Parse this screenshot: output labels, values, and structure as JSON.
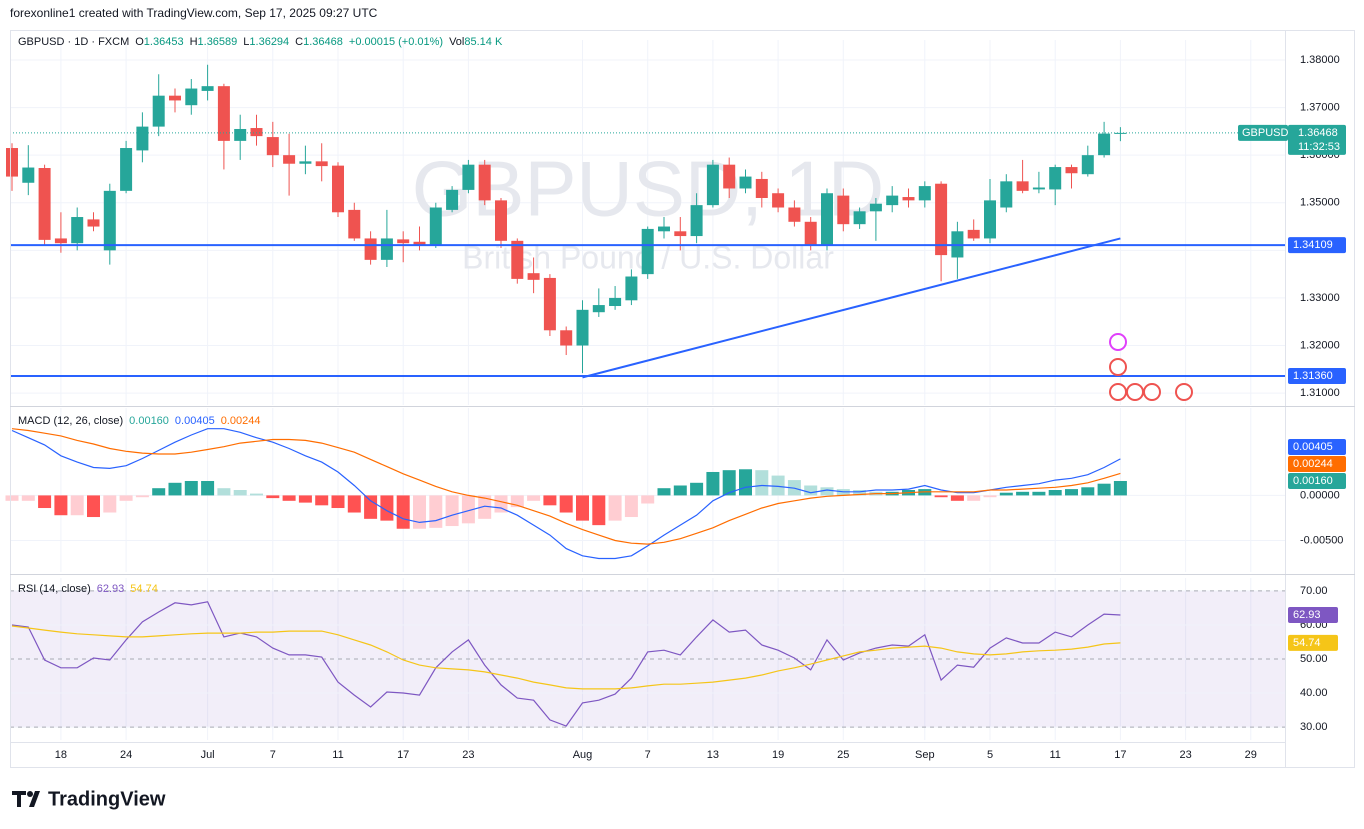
{
  "header": {
    "credit": "forexonline1 created with TradingView.com, Sep 17, 2025 09:27 UTC"
  },
  "footer": {
    "brand": "TradingView"
  },
  "chart_data": [
    {
      "type": "candlestick",
      "legend": {
        "symbol": "GBPUSD · 1D · FXCM",
        "open_label": "O",
        "high_label": "H",
        "low_label": "L",
        "close_label": "C",
        "change": "+0.00015 (+0.01%)",
        "volume_label": "Vol",
        "volume": "85.14 K"
      },
      "watermark": "GBPUSD, 1D",
      "watermark_subtitle": "British Pound / U.S. Dollar",
      "symbol_badge": "GBPUSD",
      "countdown": "11:32:53",
      "categories": [
        null,
        null,
        null,
        "18",
        null,
        null,
        null,
        "24",
        null,
        null,
        null,
        null,
        "Jul",
        null,
        null,
        null,
        "7",
        null,
        null,
        null,
        "11",
        null,
        null,
        null,
        "17",
        null,
        null,
        null,
        "23",
        null,
        null,
        null,
        null,
        null,
        null,
        "Aug",
        null,
        null,
        null,
        "7",
        null,
        null,
        null,
        "13",
        null,
        null,
        null,
        "19",
        null,
        null,
        null,
        "25",
        null,
        null,
        null,
        null,
        "Sep",
        null,
        null,
        null,
        "5",
        null,
        null,
        null,
        "11",
        null,
        null,
        null,
        "17",
        null,
        null,
        null,
        "23",
        null,
        null,
        null,
        "29",
        null
      ],
      "open": [
        1.3615,
        1.3542,
        1.3573,
        1.3425,
        1.3415,
        1.3465,
        1.34,
        1.3525,
        1.361,
        1.366,
        1.3725,
        1.3705,
        1.3735,
        1.3745,
        1.363,
        1.3657,
        1.3638,
        1.36,
        1.3582,
        1.3587,
        1.3578,
        1.3485,
        1.3425,
        1.338,
        1.3423,
        1.3418,
        1.3412,
        1.3485,
        1.3527,
        1.358,
        1.3505,
        1.342,
        1.3352,
        1.3342,
        1.3232,
        1.32,
        1.327,
        1.3283,
        1.3295,
        1.335,
        1.344,
        1.344,
        1.343,
        1.3495,
        1.358,
        1.353,
        1.355,
        1.352,
        1.349,
        1.346,
        1.3412,
        1.3515,
        1.3455,
        1.3482,
        1.3495,
        1.3512,
        1.3505,
        1.354,
        1.3385,
        1.3443,
        1.3425,
        1.349,
        1.3545,
        1.3528,
        1.3528,
        1.3575,
        1.356,
        1.36,
        1.36453,
        null,
        null,
        null,
        null,
        null,
        null,
        null,
        null,
        null
      ],
      "high": [
        1.3625,
        1.3621,
        1.358,
        1.348,
        1.349,
        1.348,
        1.354,
        1.363,
        1.369,
        1.377,
        1.374,
        1.376,
        1.379,
        1.375,
        1.3685,
        1.3685,
        1.367,
        1.3645,
        1.362,
        1.3625,
        1.3585,
        1.35,
        1.344,
        1.3485,
        1.344,
        1.345,
        1.35,
        1.3535,
        1.359,
        1.359,
        1.351,
        1.3425,
        1.3385,
        1.335,
        1.324,
        1.3295,
        1.332,
        1.3325,
        1.336,
        1.345,
        1.347,
        1.347,
        1.352,
        1.359,
        1.3595,
        1.357,
        1.3565,
        1.353,
        1.3505,
        1.347,
        1.353,
        1.353,
        1.349,
        1.351,
        1.3535,
        1.353,
        1.3545,
        1.3545,
        1.346,
        1.3465,
        1.355,
        1.356,
        1.359,
        1.3565,
        1.358,
        1.358,
        1.362,
        1.367,
        1.36589,
        null,
        null,
        null,
        null,
        null,
        null,
        null,
        null,
        null
      ],
      "low": [
        1.3525,
        1.3516,
        1.341,
        1.3395,
        1.34,
        1.344,
        1.337,
        1.352,
        1.3585,
        1.364,
        1.369,
        1.3685,
        1.3715,
        1.357,
        1.359,
        1.362,
        1.3575,
        1.3515,
        1.356,
        1.3545,
        1.347,
        1.342,
        1.337,
        1.3365,
        1.3375,
        1.34,
        1.3405,
        1.348,
        1.352,
        1.3495,
        1.3405,
        1.333,
        1.331,
        1.322,
        1.318,
        1.3142,
        1.326,
        1.3275,
        1.3285,
        1.334,
        1.3425,
        1.34,
        1.3415,
        1.349,
        1.351,
        1.352,
        1.349,
        1.348,
        1.345,
        1.34,
        1.34,
        1.344,
        1.3445,
        1.342,
        1.348,
        1.349,
        1.349,
        1.3335,
        1.334,
        1.342,
        1.3415,
        1.348,
        1.352,
        1.352,
        1.3495,
        1.353,
        1.3555,
        1.3595,
        1.36294,
        null,
        null,
        null,
        null,
        null,
        null,
        null,
        null,
        null
      ],
      "close": [
        1.3555,
        1.3574,
        1.3422,
        1.3415,
        1.347,
        1.345,
        1.3525,
        1.3615,
        1.366,
        1.3725,
        1.3715,
        1.374,
        1.3745,
        1.363,
        1.3655,
        1.364,
        1.36,
        1.3582,
        1.3587,
        1.3577,
        1.348,
        1.3425,
        1.338,
        1.3425,
        1.3415,
        1.3412,
        1.349,
        1.3527,
        1.358,
        1.3505,
        1.342,
        1.334,
        1.3338,
        1.3232,
        1.32,
        1.3275,
        1.3285,
        1.33,
        1.3345,
        1.3445,
        1.345,
        1.343,
        1.3495,
        1.358,
        1.353,
        1.3555,
        1.351,
        1.349,
        1.346,
        1.3412,
        1.352,
        1.3455,
        1.3482,
        1.3498,
        1.3515,
        1.3505,
        1.3535,
        1.339,
        1.344,
        1.3425,
        1.3505,
        1.3545,
        1.3525,
        1.3532,
        1.3575,
        1.3562,
        1.36,
        1.36453,
        1.36468,
        null,
        null,
        null,
        null,
        null,
        null,
        null,
        null,
        null
      ],
      "up_color": "#26a69a",
      "down_color": "#ef5350",
      "ylim": [
        1.3075,
        1.3842
      ],
      "yticks": [
        {
          "value": 1.31,
          "label": "1.31000"
        },
        {
          "value": 1.32,
          "label": "1.32000"
        },
        {
          "value": 1.33,
          "label": "1.33000"
        },
        {
          "value": 1.34,
          "label": "1.34000"
        },
        {
          "value": 1.35,
          "label": "1.35000"
        },
        {
          "value": 1.36,
          "label": "1.36000"
        },
        {
          "value": 1.37,
          "label": "1.37000"
        },
        {
          "value": 1.38,
          "label": "1.38000"
        }
      ],
      "grid": true,
      "hlines": [
        1.34109,
        {
          "value": 1.3136,
          "label": "1.31360"
        }
      ],
      "hline_color": "#2962ff",
      "trendline": {
        "x": [
          35,
          68
        ],
        "y": [
          1.3133,
          1.3425
        ]
      }
    },
    {
      "type": "macd",
      "title": "MACD (12, 26, close)",
      "ylim": [
        -0.0085,
        0.0097
      ],
      "yticks": [
        {
          "value": -0.005,
          "label": "-0.00500"
        },
        {
          "value": 0,
          "label": "0.00000"
        }
      ],
      "series": [
        {
          "style": "histogram",
          "color": "#26a69a",
          "colors": [
            "#26a69a",
            "#b2dfdb",
            "#ff5252",
            "#ffcdd2"
          ],
          "last_value_label": "0.00160",
          "values": [
            -0.0006,
            -0.0006,
            -0.0014,
            -0.0022,
            -0.0022,
            -0.0024,
            -0.0019,
            -0.0006,
            -0.0002,
            0.0008,
            0.0014,
            0.0016,
            0.0016,
            0.0008,
            0.0006,
            0.0002,
            -0.0003,
            -0.0006,
            -0.0008,
            -0.0011,
            -0.0014,
            -0.0019,
            -0.0026,
            -0.0028,
            -0.0037,
            -0.0037,
            -0.0036,
            -0.0034,
            -0.0031,
            -0.0026,
            -0.0019,
            -0.0013,
            -0.0006,
            -0.0011,
            -0.0019,
            -0.0028,
            -0.0033,
            -0.0028,
            -0.0024,
            -0.0009,
            0.0008,
            0.0011,
            0.0014,
            0.0026,
            0.0028,
            0.0029,
            0.0028,
            0.0022,
            0.0017,
            0.0011,
            0.0009,
            0.0007,
            0.0006,
            0.0004,
            0.0004,
            0.0006,
            0.0007,
            -0.0002,
            -0.0006,
            -0.0006,
            -0.0002,
            0.0003,
            0.0004,
            0.0004,
            0.0006,
            0.0007,
            0.0009,
            0.0013,
            0.0016
          ]
        },
        {
          "style": "line",
          "color": "#2962ff",
          "last_value_label": "0.00405",
          "values": [
            0.0072,
            0.0064,
            0.0056,
            0.0044,
            0.0037,
            0.0031,
            0.003,
            0.0033,
            0.0041,
            0.005,
            0.0059,
            0.0067,
            0.0074,
            0.0074,
            0.007,
            0.0064,
            0.0059,
            0.0052,
            0.0044,
            0.0037,
            0.0026,
            0.0011,
            -0.0006,
            -0.0017,
            -0.0026,
            -0.003,
            -0.0028,
            -0.0022,
            -0.0017,
            -0.0012,
            -0.0014,
            -0.0022,
            -0.0033,
            -0.0044,
            -0.0059,
            -0.0067,
            -0.007,
            -0.007,
            -0.0067,
            -0.0056,
            -0.0044,
            -0.0033,
            -0.0022,
            -0.0006,
            0.0003,
            0.0009,
            0.0011,
            0.001,
            0.0008,
            0.0003,
            0.0006,
            0.0004,
            0.0004,
            0.0006,
            0.0006,
            0.0007,
            0.0011,
            0.0006,
            0.0003,
            0.0003,
            0.0006,
            0.0009,
            0.0011,
            0.0013,
            0.0017,
            0.0019,
            0.0023,
            0.0031,
            0.00405
          ]
        },
        {
          "style": "line",
          "color": "#ff6d00",
          "last_value_label": "0.00244",
          "values": [
            0.0074,
            0.0072,
            0.0069,
            0.0066,
            0.0061,
            0.0057,
            0.0052,
            0.0049,
            0.0047,
            0.0046,
            0.0046,
            0.0048,
            0.0051,
            0.0054,
            0.0058,
            0.006,
            0.0062,
            0.0062,
            0.0061,
            0.0058,
            0.0053,
            0.0048,
            0.004,
            0.0032,
            0.0024,
            0.0017,
            0.001,
            0.0004,
            0,
            -0.0003,
            -0.0007,
            -0.0011,
            -0.0017,
            -0.0023,
            -0.0031,
            -0.0038,
            -0.0044,
            -0.005,
            -0.0053,
            -0.0054,
            -0.0052,
            -0.0048,
            -0.0042,
            -0.0036,
            -0.0028,
            -0.0021,
            -0.0014,
            -0.0009,
            -0.0006,
            -0.0003,
            -0.0001,
            0,
            0.0001,
            0.0002,
            0.0002,
            0.0003,
            0.0004,
            0.0004,
            0.0004,
            0.0004,
            0.0006,
            0.0006,
            0.0007,
            0.0008,
            0.0009,
            0.0011,
            0.0014,
            0.0019,
            0.00244
          ]
        }
      ]
    },
    {
      "type": "rsi",
      "title": "RSI (14, close)",
      "ylim": [
        26.2,
        73.8
      ],
      "yticks": [
        {
          "value": 30,
          "label": "30.00"
        },
        {
          "value": 40,
          "label": "40.00"
        },
        {
          "value": 50,
          "label": "50.00"
        },
        {
          "value": 60,
          "label": "60.00"
        },
        {
          "value": 70,
          "label": "70.00"
        }
      ],
      "band": [
        30,
        70
      ],
      "midline": 50,
      "band_color": "#7e57c2",
      "series": [
        {
          "color": "#7e57c2",
          "values": [
            60,
            59.4,
            49.7,
            47.4,
            47.4,
            50.3,
            49.7,
            55.6,
            60.9,
            63.8,
            66.5,
            65.9,
            66.8,
            56.5,
            57.6,
            56.5,
            53.2,
            51.2,
            51.2,
            50.6,
            43.2,
            39.4,
            35.9,
            40.3,
            40,
            39.4,
            47.4,
            52.1,
            55.6,
            48.2,
            42.4,
            38.5,
            37.9,
            32.1,
            30.3,
            37.1,
            37.9,
            39.7,
            44.4,
            52.1,
            52.6,
            51.2,
            56.5,
            61.5,
            57.9,
            58.5,
            54.1,
            52.6,
            50.3,
            46.8,
            55.6,
            49.7,
            51.8,
            53.2,
            54.1,
            53.8,
            57.1,
            43.8,
            48.2,
            47.6,
            53.2,
            56.2,
            54.7,
            54.7,
            57.9,
            56.5,
            60,
            63.2,
            62.93
          ]
        },
        {
          "color": "#f5c518",
          "values": [
            59.7,
            59.1,
            58.5,
            57.9,
            57.4,
            57.1,
            56.8,
            56.5,
            56.5,
            56.8,
            57.1,
            57.4,
            57.6,
            57.6,
            57.6,
            57.9,
            57.9,
            58.2,
            58.2,
            58.2,
            57.1,
            55.6,
            54.1,
            52.1,
            49.7,
            48.2,
            47.4,
            47.1,
            46.8,
            46.2,
            45.3,
            44.4,
            43.2,
            42.4,
            41.5,
            41.2,
            41.2,
            41.2,
            41.5,
            42.1,
            42.6,
            42.6,
            42.9,
            43.2,
            43.8,
            44.4,
            45.3,
            46.5,
            47.4,
            48.5,
            49.7,
            50.9,
            52.1,
            52.6,
            53.2,
            53.5,
            53.8,
            53.2,
            52.1,
            51.5,
            51.2,
            51.5,
            52.1,
            52.4,
            52.6,
            52.9,
            53.5,
            54.4,
            54.74
          ]
        }
      ]
    }
  ]
}
